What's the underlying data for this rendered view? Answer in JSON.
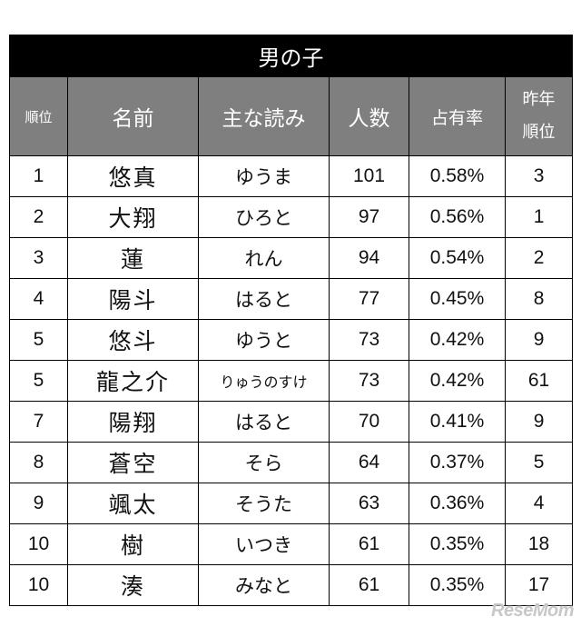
{
  "table": {
    "title": "男の子",
    "headers": {
      "rank": "順位",
      "name": "名前",
      "reading": "主な読み",
      "count": "人数",
      "share": "占有率",
      "last_year_line1": "昨年",
      "last_year_line2": "順位"
    },
    "rows": [
      {
        "rank": "1",
        "name": "悠真",
        "reading": "ゆうま",
        "count": "101",
        "share": "0.58%",
        "last_year": "3"
      },
      {
        "rank": "2",
        "name": "大翔",
        "reading": "ひろと",
        "count": "97",
        "share": "0.56%",
        "last_year": "1"
      },
      {
        "rank": "3",
        "name": "蓮",
        "reading": "れん",
        "count": "94",
        "share": "0.54%",
        "last_year": "2"
      },
      {
        "rank": "4",
        "name": "陽斗",
        "reading": "はると",
        "count": "77",
        "share": "0.45%",
        "last_year": "8"
      },
      {
        "rank": "5",
        "name": "悠斗",
        "reading": "ゆうと",
        "count": "73",
        "share": "0.42%",
        "last_year": "9"
      },
      {
        "rank": "5",
        "name": "龍之介",
        "reading": "りゅうのすけ",
        "count": "73",
        "share": "0.42%",
        "last_year": "61"
      },
      {
        "rank": "7",
        "name": "陽翔",
        "reading": "はると",
        "count": "70",
        "share": "0.41%",
        "last_year": "9"
      },
      {
        "rank": "8",
        "name": "蒼空",
        "reading": "そら",
        "count": "64",
        "share": "0.37%",
        "last_year": "5"
      },
      {
        "rank": "9",
        "name": "颯太",
        "reading": "そうた",
        "count": "63",
        "share": "0.36%",
        "last_year": "4"
      },
      {
        "rank": "10",
        "name": "樹",
        "reading": "いつき",
        "count": "61",
        "share": "0.35%",
        "last_year": "18"
      },
      {
        "rank": "10",
        "name": "湊",
        "reading": "みなと",
        "count": "61",
        "share": "0.35%",
        "last_year": "17"
      }
    ]
  },
  "watermark": "ReseMom"
}
